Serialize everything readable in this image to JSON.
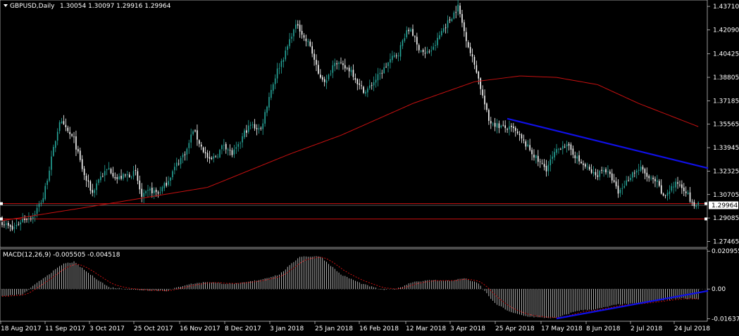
{
  "chart_data": [
    {
      "type": "candlestick",
      "symbol_label": "GBPUSD,Daily",
      "ohlc_label": "1.30054 1.30097 1.29916 1.29964",
      "current_price_label": "1.29964",
      "current_price": 1.29964,
      "ylim": [
        1.2705,
        1.4415
      ],
      "y_ticks": [
        "1.43710",
        "1.42090",
        "1.40425",
        "1.38805",
        "1.37185",
        "1.35565",
        "1.33945",
        "1.32325",
        "1.30705",
        "1.29085",
        "1.27465"
      ],
      "x_ticks": [
        "18 Aug 2017",
        "11 Sep 2017",
        "3 Oct 2017",
        "25 Oct 2017",
        "16 Nov 2017",
        "8 Dec 2017",
        "3 Jan 2018",
        "25 Jan 2018",
        "16 Feb 2018",
        "12 Mar 2018",
        "3 Apr 2018",
        "25 Apr 2018",
        "17 May 2018",
        "8 Jun 2018",
        "2 Jul 2018",
        "24 Jul 2018"
      ],
      "close_anchors": [
        [
          0,
          1.288
        ],
        [
          5,
          1.283
        ],
        [
          10,
          1.29
        ],
        [
          15,
          1.292
        ],
        [
          20,
          1.305
        ],
        [
          26,
          1.345
        ],
        [
          28,
          1.358
        ],
        [
          31,
          1.352
        ],
        [
          35,
          1.345
        ],
        [
          40,
          1.32
        ],
        [
          44,
          1.308
        ],
        [
          47,
          1.318
        ],
        [
          52,
          1.325
        ],
        [
          56,
          1.318
        ],
        [
          60,
          1.32
        ],
        [
          65,
          1.322
        ],
        [
          68,
          1.305
        ],
        [
          72,
          1.31
        ],
        [
          76,
          1.308
        ],
        [
          80,
          1.315
        ],
        [
          85,
          1.328
        ],
        [
          90,
          1.338
        ],
        [
          93,
          1.352
        ],
        [
          97,
          1.34
        ],
        [
          101,
          1.33
        ],
        [
          105,
          1.335
        ],
        [
          108,
          1.342
        ],
        [
          112,
          1.335
        ],
        [
          115,
          1.34
        ],
        [
          118,
          1.35
        ],
        [
          121,
          1.355
        ],
        [
          126,
          1.352
        ],
        [
          130,
          1.375
        ],
        [
          134,
          1.393
        ],
        [
          138,
          1.405
        ],
        [
          141,
          1.418
        ],
        [
          144,
          1.425
        ],
        [
          147,
          1.415
        ],
        [
          150,
          1.41
        ],
        [
          154,
          1.39
        ],
        [
          158,
          1.385
        ],
        [
          162,
          1.4
        ],
        [
          166,
          1.395
        ],
        [
          170,
          1.393
        ],
        [
          174,
          1.382
        ],
        [
          177,
          1.378
        ],
        [
          181,
          1.385
        ],
        [
          185,
          1.392
        ],
        [
          189,
          1.4
        ],
        [
          193,
          1.405
        ],
        [
          196,
          1.417
        ],
        [
          199,
          1.422
        ],
        [
          202,
          1.41
        ],
        [
          206,
          1.404
        ],
        [
          210,
          1.408
        ],
        [
          214,
          1.42
        ],
        [
          218,
          1.428
        ],
        [
          222,
          1.437
        ],
        [
          225,
          1.42
        ],
        [
          228,
          1.405
        ],
        [
          231,
          1.393
        ],
        [
          234,
          1.375
        ],
        [
          237,
          1.358
        ],
        [
          241,
          1.355
        ],
        [
          245,
          1.353
        ],
        [
          249,
          1.352
        ],
        [
          253,
          1.345
        ],
        [
          257,
          1.338
        ],
        [
          261,
          1.33
        ],
        [
          265,
          1.325
        ],
        [
          269,
          1.335
        ],
        [
          273,
          1.342
        ],
        [
          277,
          1.338
        ],
        [
          281,
          1.33
        ],
        [
          285,
          1.325
        ],
        [
          289,
          1.32
        ],
        [
          293,
          1.325
        ],
        [
          297,
          1.318
        ],
        [
          300,
          1.308
        ],
        [
          304,
          1.316
        ],
        [
          307,
          1.322
        ],
        [
          311,
          1.325
        ],
        [
          315,
          1.318
        ],
        [
          319,
          1.315
        ],
        [
          322,
          1.305
        ],
        [
          326,
          1.312
        ],
        [
          329,
          1.315
        ],
        [
          333,
          1.31
        ],
        [
          336,
          1.3
        ],
        [
          339,
          1.2996
        ]
      ],
      "ma": {
        "color": "#c81010",
        "points": [
          [
            0,
            1.289
          ],
          [
            40,
            1.298
          ],
          [
            100,
            1.312
          ],
          [
            140,
            1.335
          ],
          [
            165,
            1.348
          ],
          [
            200,
            1.37
          ],
          [
            230,
            1.385
          ],
          [
            252,
            1.389
          ],
          [
            270,
            1.388
          ],
          [
            290,
            1.383
          ],
          [
            310,
            1.37
          ],
          [
            339,
            1.354
          ]
        ]
      },
      "horizontal_lines": [
        {
          "color": "#c81010",
          "price": 1.3008
        },
        {
          "color": "#c81010",
          "price": 1.2902
        }
      ],
      "trendline": {
        "color": "#1010e6",
        "start": [
          246,
          1.3595
        ],
        "end": [
          339,
          1.3262
        ]
      }
    },
    {
      "type": "bar",
      "indicator": "MACD",
      "label": "MACD(12,26,9) -0.005505 -0.004518",
      "ylim": [
        -0.0178,
        0.0222
      ],
      "y_ticks": [
        "0.020955",
        "0.00",
        "-0.016377"
      ],
      "signal_color": "#c81010",
      "trendline": {
        "color": "#1010e6",
        "start": [
          270,
          -0.0163
        ],
        "end": [
          339,
          -0.001
        ]
      },
      "value_anchors": [
        [
          0,
          -0.004
        ],
        [
          10,
          -0.003
        ],
        [
          20,
          0.006
        ],
        [
          30,
          0.014
        ],
        [
          35,
          0.015
        ],
        [
          43,
          0.008
        ],
        [
          52,
          0.001
        ],
        [
          65,
          -0.0005
        ],
        [
          80,
          -0.001
        ],
        [
          90,
          0.0025
        ],
        [
          100,
          0.004
        ],
        [
          108,
          0.003
        ],
        [
          115,
          0.003
        ],
        [
          125,
          0.005
        ],
        [
          135,
          0.008
        ],
        [
          145,
          0.018
        ],
        [
          155,
          0.018
        ],
        [
          165,
          0.008
        ],
        [
          175,
          0.003
        ],
        [
          185,
          -0.0005
        ],
        [
          192,
          0.0
        ],
        [
          200,
          0.004
        ],
        [
          210,
          0.005
        ],
        [
          218,
          0.0045
        ],
        [
          225,
          0.006
        ],
        [
          232,
          0.003
        ],
        [
          240,
          -0.008
        ],
        [
          248,
          -0.013
        ],
        [
          255,
          -0.015
        ],
        [
          262,
          -0.0158
        ],
        [
          270,
          -0.016
        ],
        [
          280,
          -0.012
        ],
        [
          290,
          -0.011
        ],
        [
          300,
          -0.0085
        ],
        [
          310,
          -0.008
        ],
        [
          320,
          -0.0065
        ],
        [
          330,
          -0.005
        ],
        [
          339,
          -0.0055
        ]
      ]
    }
  ]
}
